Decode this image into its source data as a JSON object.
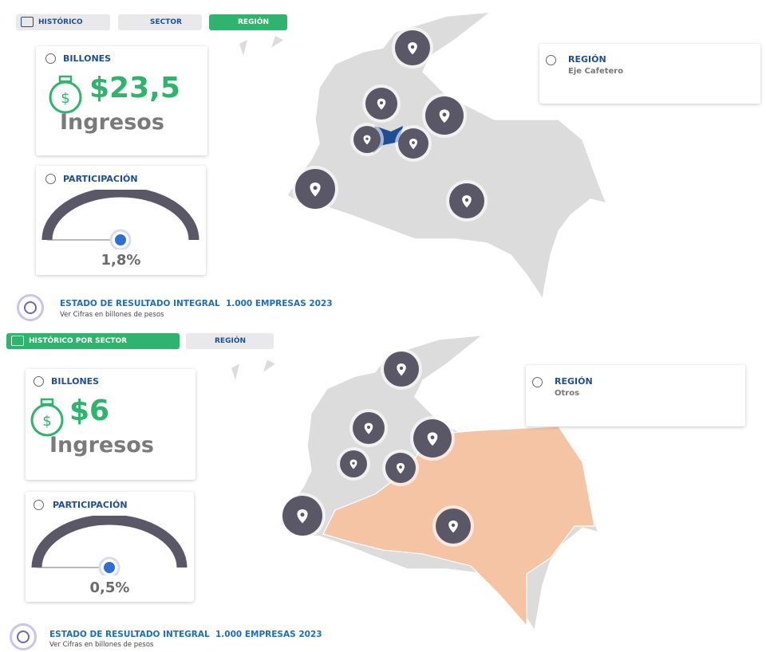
{
  "panels": [
    {
      "tabs": [
        "HISTÓRICO",
        "SECTOR",
        "REGIÓN"
      ],
      "income_card": {
        "label": "BILLONES",
        "amount": "$23,5",
        "caption": "Ingresos"
      },
      "share_card": {
        "label": "PARTICIPACIÓN",
        "value": "1,8%"
      },
      "region_card": {
        "label": "REGIÓN",
        "value": "Eje Cafetero"
      },
      "footer": {
        "title": "ESTADO DE RESULTADO INTEGRAL  1.000 EMPRESAS 2023",
        "subtitle": "Ver Cifras en billones de pesos"
      }
    },
    {
      "tabs": [
        "HISTÓRICO POR SECTOR",
        "REGIÓN"
      ],
      "income_card": {
        "label": "BILLONES",
        "amount": "$6",
        "caption": "Ingresos"
      },
      "share_card": {
        "label": "PARTICIPACIÓN",
        "value": "0,5%"
      },
      "region_card": {
        "label": "REGIÓN",
        "value": "Otros"
      },
      "footer": {
        "title": "ESTADO DE RESULTADO INTEGRAL  1.000 EMPRESAS 2023",
        "subtitle": "Ver Cifras en billones de pesos"
      }
    }
  ]
}
